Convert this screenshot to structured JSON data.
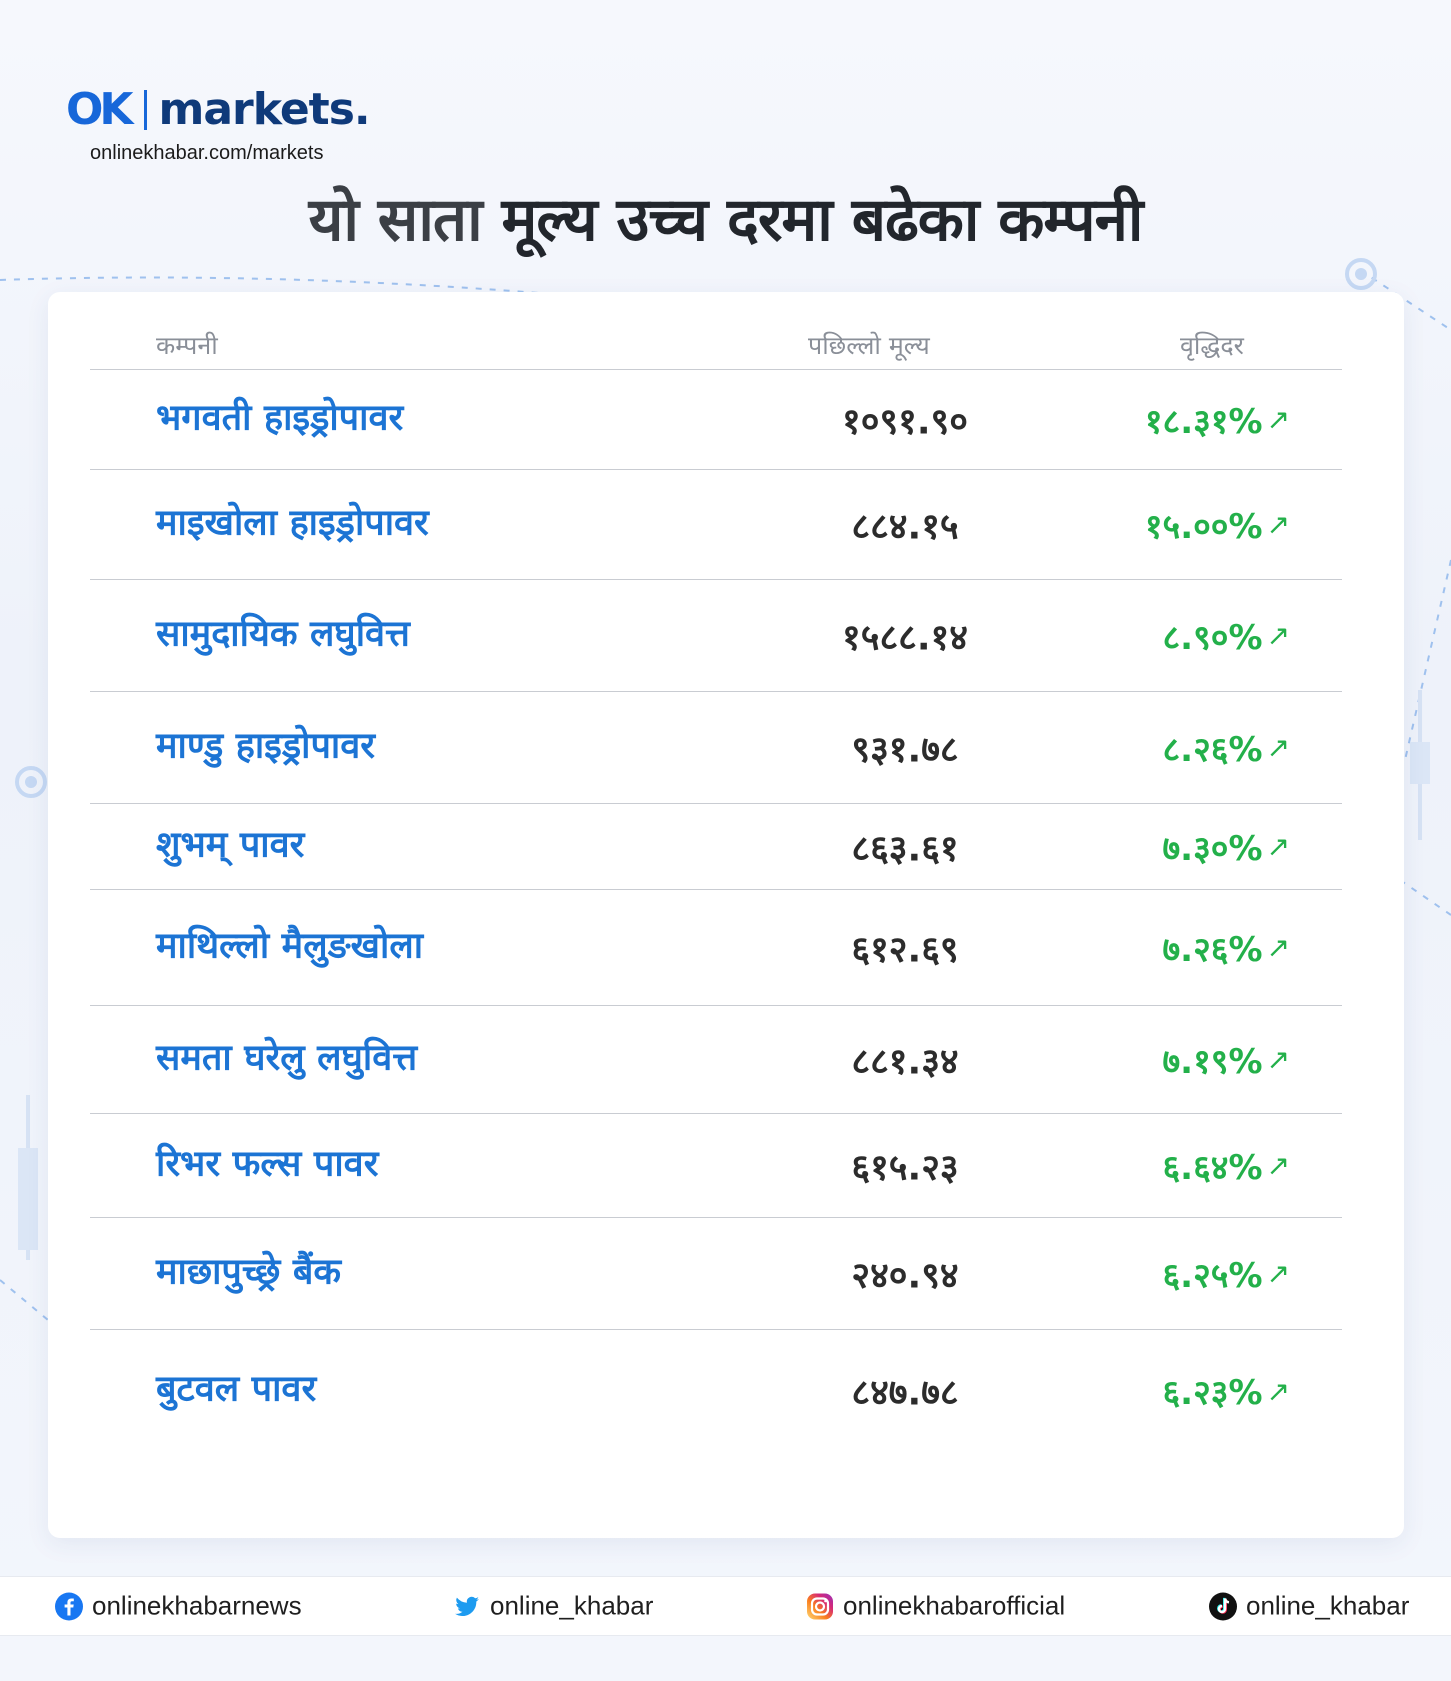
{
  "brand": {
    "logo_mark": "OK",
    "logo_word": "markets.",
    "url": "onlinekhabar.com/markets"
  },
  "headline": {
    "light": "यो साता ",
    "bold": "मूल्य उच्च दरमा बढेका कम्पनी"
  },
  "table": {
    "headers": {
      "company": "कम्पनी",
      "last_price": "पछिल्लो मूल्य",
      "growth": "वृद्धिदर"
    },
    "rows": [
      {
        "company": "भगवती हाइड्रोपावर",
        "price": "१०९१.९०",
        "growth": "१८.३१%"
      },
      {
        "company": "माइखोला हाइड्रोपावर",
        "price": "८८४.१५",
        "growth": "१५.००%"
      },
      {
        "company": "सामुदायिक लघुवित्त",
        "price": "१५८८.१४",
        "growth": "८.९०%"
      },
      {
        "company": "माण्डु हाइड्रोपावर",
        "price": "९३१.७८",
        "growth": "८.२६%"
      },
      {
        "company": "शुभम् पावर",
        "price": "८६३.६१",
        "growth": "७.३०%"
      },
      {
        "company": "माथिल्लो मैलुङखोला",
        "price": "६१२.६९",
        "growth": "७.२६%"
      },
      {
        "company": "समता घरेलु लघुवित्त",
        "price": "८८१.३४",
        "growth": "७.१९%"
      },
      {
        "company": "रिभर फल्स पावर",
        "price": "६१५.२३",
        "growth": "६.६४%"
      },
      {
        "company": "माछापुच्छ्रे बैंक",
        "price": "२४०.९४",
        "growth": "६.२५%"
      },
      {
        "company": "बुटवल पावर",
        "price": "८४७.७८",
        "growth": "६.२३%"
      }
    ],
    "trend_icon": "arrow-up-right-icon"
  },
  "footer": {
    "facebook": "onlinekhabarnews",
    "twitter": "online_khabar",
    "instagram": "onlinekhabarofficial",
    "tiktok": "online_khabar"
  },
  "colors": {
    "company_name": "#1c74d4",
    "growth": "#23b04a",
    "brand": "#1767d9"
  }
}
